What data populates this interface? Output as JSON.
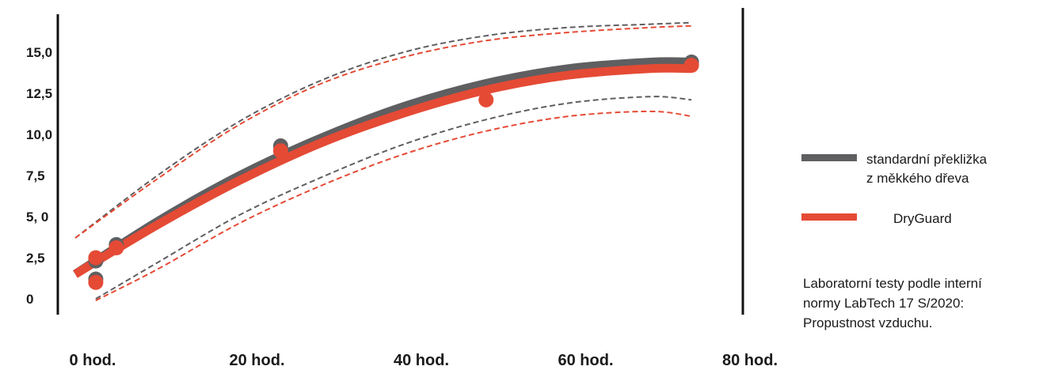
{
  "chart_data": {
    "type": "line",
    "title": "",
    "xlabel": "",
    "ylabel": "",
    "xlim": [
      0,
      80
    ],
    "ylim": [
      0,
      15
    ],
    "x_ticks": [
      {
        "value": 0,
        "label": "0 hod."
      },
      {
        "value": 20,
        "label": "20 hod."
      },
      {
        "value": 40,
        "label": "40 hod."
      },
      {
        "value": 60,
        "label": "60 hod."
      },
      {
        "value": 80,
        "label": "80 hod."
      }
    ],
    "y_ticks": [
      {
        "value": 0,
        "label": "0"
      },
      {
        "value": 2.5,
        "label": "2,5"
      },
      {
        "value": 5,
        "label": "5, 0"
      },
      {
        "value": 7.5,
        "label": "7,5"
      },
      {
        "value": 10,
        "label": "10,0"
      },
      {
        "value": 12.5,
        "label": "12,5"
      },
      {
        "value": 15,
        "label": "15,0"
      }
    ],
    "grid": false,
    "legend_position": "right",
    "series": [
      {
        "name": "standardní překližka z měkkého dřeva",
        "legend_lines": [
          "standardní překližka",
          "z měkkého dřeva"
        ],
        "color": "#5f5f61",
        "points": [
          [
            2.5,
            1.2
          ],
          [
            2.5,
            2.3
          ],
          [
            5,
            3.3
          ],
          [
            25,
            9.3
          ],
          [
            75,
            14.4
          ]
        ],
        "fit": {
          "x": [
            0,
            10,
            20,
            30,
            40,
            50,
            60,
            70,
            75
          ],
          "y": [
            1.5,
            4.7,
            7.5,
            9.8,
            11.7,
            13.1,
            14.0,
            14.4,
            14.4
          ]
        },
        "band_upper": {
          "x": [
            0,
            10,
            20,
            30,
            40,
            50,
            60,
            70,
            75
          ],
          "y": [
            3.7,
            7.5,
            10.8,
            13.3,
            15.0,
            16.0,
            16.5,
            16.7,
            16.8
          ]
        },
        "band_lower": {
          "x": [
            2.5,
            10,
            20,
            30,
            40,
            50,
            60,
            70,
            75
          ],
          "y": [
            0.0,
            2.2,
            5.1,
            7.4,
            9.4,
            10.9,
            11.9,
            12.3,
            12.1
          ]
        }
      },
      {
        "name": "DryGuard",
        "legend_lines": [
          "DryGuard"
        ],
        "color": "#e54a35",
        "points": [
          [
            2.5,
            1.0
          ],
          [
            2.5,
            2.5
          ],
          [
            5,
            3.1
          ],
          [
            25,
            9.0
          ],
          [
            50,
            12.1
          ],
          [
            75,
            14.2
          ]
        ],
        "fit": {
          "x": [
            0,
            10,
            20,
            30,
            40,
            50,
            60,
            70,
            75
          ],
          "y": [
            1.5,
            4.5,
            7.2,
            9.5,
            11.3,
            12.7,
            13.6,
            14.0,
            14.0
          ]
        },
        "band_upper": {
          "x": [
            0,
            10,
            20,
            30,
            40,
            50,
            60,
            70,
            75
          ],
          "y": [
            3.7,
            7.3,
            10.6,
            13.1,
            14.7,
            15.7,
            16.2,
            16.5,
            16.6
          ]
        },
        "band_lower": {
          "x": [
            2.5,
            10,
            20,
            30,
            40,
            50,
            60,
            70,
            75
          ],
          "y": [
            -0.1,
            1.8,
            4.6,
            6.9,
            8.8,
            10.2,
            11.1,
            11.4,
            11.1
          ]
        }
      }
    ]
  },
  "note": {
    "lines": [
      "Laboratorní  testy  podle interní",
      "normy  LabTech  17 S/2020:",
      "Propustnost vzduchu."
    ]
  }
}
